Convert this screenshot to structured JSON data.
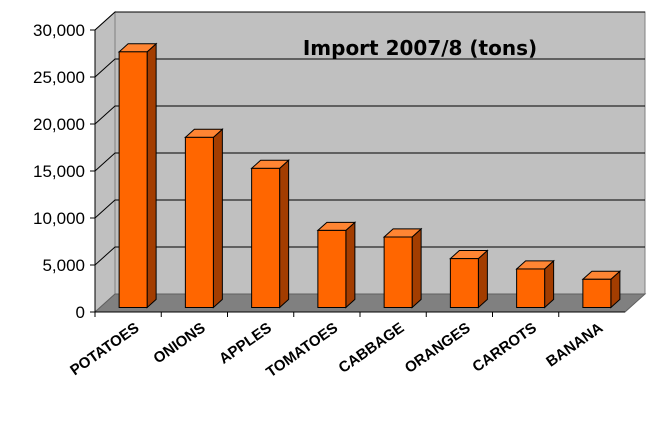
{
  "chart_data": {
    "type": "bar3d",
    "title": "Import 2007/8 (tons)",
    "categories": [
      "POTATOES",
      "ONIONS",
      "APPLES",
      "TOMATOES",
      "CABBAGE",
      "ORANGES",
      "CARROTS",
      "BANANA"
    ],
    "values": [
      27200,
      18100,
      14800,
      8200,
      7500,
      5200,
      4100,
      3000
    ],
    "color": "#ff6600",
    "ylim": [
      0,
      30000
    ],
    "yticks": [
      0,
      {
        "value": 5000,
        "label": "5,000"
      },
      {
        "value": 10000,
        "label": "10,000"
      },
      {
        "value": 15000,
        "label": "15,000"
      },
      {
        "value": 20000,
        "label": "20,000"
      },
      {
        "value": 25000,
        "label": "25,000"
      },
      {
        "value": 30000,
        "label": "30,000"
      }
    ],
    "grid": true
  }
}
